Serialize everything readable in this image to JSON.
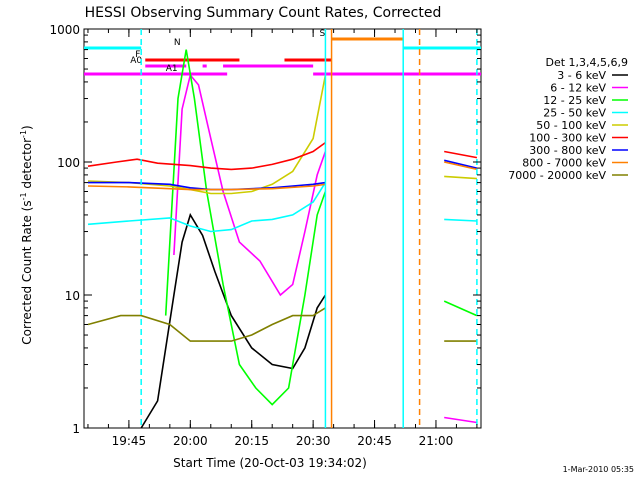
{
  "chart_data": {
    "type": "line",
    "title": "HESSI Observing Summary Count Rates, Corrected",
    "xlabel": "Start Time (20-Oct-03 19:34:02)",
    "ylabel_main": "Corrected Count Rate (s",
    "ylabel_sup1": "-1",
    "ylabel_mid": " detector",
    "ylabel_sup2": "-1",
    "ylabel_end": ")",
    "footer": "1-Mar-2010 05:35",
    "y_scale": "log",
    "ylim": [
      1,
      1000
    ],
    "xlim": [
      "19:34:02",
      "21:11:00"
    ],
    "x_tick_labels": [
      "19:45",
      "20:00",
      "20:15",
      "20:30",
      "20:45",
      "21:00"
    ],
    "y_tick_labels": [
      "1",
      "10",
      "100",
      "1000"
    ],
    "legend_header": "Det 1,3,4,5,6,9",
    "series": [
      {
        "name": "3 - 6 keV",
        "color": "#000000",
        "points": [
          [
            "19:48:00",
            1
          ],
          [
            "19:52:00",
            1.6
          ],
          [
            "19:56:00",
            10
          ],
          [
            "19:58:00",
            25
          ],
          [
            "20:00:00",
            40
          ],
          [
            "20:03:00",
            28
          ],
          [
            "20:06:00",
            15
          ],
          [
            "20:10:00",
            7
          ],
          [
            "20:15:00",
            4
          ],
          [
            "20:20:00",
            3
          ],
          [
            "20:25:00",
            2.8
          ],
          [
            "20:28:00",
            4
          ],
          [
            "20:31:00",
            8
          ],
          [
            "20:33:00",
            10
          ]
        ],
        "points_b": []
      },
      {
        "name": "6 - 12 keV",
        "color": "#ff00ff",
        "points": [
          [
            "19:56:00",
            20
          ],
          [
            "19:58:00",
            250
          ],
          [
            "20:00:00",
            450
          ],
          [
            "20:02:00",
            380
          ],
          [
            "20:05:00",
            150
          ],
          [
            "20:08:00",
            60
          ],
          [
            "20:12:00",
            25
          ],
          [
            "20:17:00",
            18
          ],
          [
            "20:22:00",
            10
          ],
          [
            "20:25:00",
            12
          ],
          [
            "20:28:00",
            30
          ],
          [
            "20:31:00",
            80
          ],
          [
            "20:33:00",
            120
          ]
        ],
        "points_b": [
          [
            "21:02:00",
            1.2
          ],
          [
            "21:10:00",
            1.1
          ]
        ]
      },
      {
        "name": "12 - 25 keV",
        "color": "#00ff00",
        "points": [
          [
            "19:54:00",
            7
          ],
          [
            "19:57:00",
            300
          ],
          [
            "19:59:00",
            700
          ],
          [
            "20:01:00",
            300
          ],
          [
            "20:04:00",
            60
          ],
          [
            "20:08:00",
            12
          ],
          [
            "20:12:00",
            3
          ],
          [
            "20:16:00",
            2
          ],
          [
            "20:20:00",
            1.5
          ],
          [
            "20:24:00",
            2
          ],
          [
            "20:28:00",
            10
          ],
          [
            "20:31:00",
            40
          ],
          [
            "20:33:00",
            60
          ]
        ],
        "points_b": [
          [
            "21:02:00",
            9
          ],
          [
            "21:10:00",
            7
          ]
        ]
      },
      {
        "name": "25 - 50 keV",
        "color": "#00ffff",
        "points": [
          [
            "19:35:00",
            34
          ],
          [
            "19:45:00",
            36
          ],
          [
            "19:55:00",
            38
          ],
          [
            "20:00:00",
            33
          ],
          [
            "20:05:00",
            30
          ],
          [
            "20:10:00",
            31
          ],
          [
            "20:15:00",
            36
          ],
          [
            "20:20:00",
            37
          ],
          [
            "20:25:00",
            40
          ],
          [
            "20:30:00",
            50
          ],
          [
            "20:33:00",
            70
          ]
        ],
        "points_b": [
          [
            "21:02:00",
            37
          ],
          [
            "21:10:00",
            36
          ]
        ]
      },
      {
        "name": "50 - 100 keV",
        "color": "#cccc00",
        "points": [
          [
            "19:35:00",
            72
          ],
          [
            "19:45:00",
            70
          ],
          [
            "19:55:00",
            66
          ],
          [
            "20:00:00",
            62
          ],
          [
            "20:05:00",
            58
          ],
          [
            "20:10:00",
            58
          ],
          [
            "20:15:00",
            60
          ],
          [
            "20:20:00",
            68
          ],
          [
            "20:25:00",
            85
          ],
          [
            "20:30:00",
            150
          ],
          [
            "20:33:00",
            450
          ]
        ],
        "points_b": [
          [
            "21:02:00",
            78
          ],
          [
            "21:10:00",
            75
          ]
        ]
      },
      {
        "name": "100 - 300 keV",
        "color": "#ff0000",
        "points": [
          [
            "19:35:00",
            93
          ],
          [
            "19:42:00",
            100
          ],
          [
            "19:47:00",
            105
          ],
          [
            "19:52:00",
            98
          ],
          [
            "20:00:00",
            94
          ],
          [
            "20:05:00",
            90
          ],
          [
            "20:10:00",
            88
          ],
          [
            "20:15:00",
            90
          ],
          [
            "20:20:00",
            96
          ],
          [
            "20:25:00",
            105
          ],
          [
            "20:30:00",
            120
          ],
          [
            "20:33:00",
            140
          ]
        ],
        "points_b": [
          [
            "21:02:00",
            120
          ],
          [
            "21:10:00",
            108
          ]
        ]
      },
      {
        "name": "300 - 800 keV",
        "color": "#0000ff",
        "points": [
          [
            "19:35:00",
            70
          ],
          [
            "19:45:00",
            70
          ],
          [
            "19:55:00",
            68
          ],
          [
            "20:00:00",
            64
          ],
          [
            "20:05:00",
            62
          ],
          [
            "20:10:00",
            62
          ],
          [
            "20:15:00",
            63
          ],
          [
            "20:20:00",
            64
          ],
          [
            "20:25:00",
            66
          ],
          [
            "20:30:00",
            68
          ],
          [
            "20:33:00",
            70
          ]
        ],
        "points_b": [
          [
            "21:02:00",
            103
          ],
          [
            "21:10:00",
            90
          ]
        ]
      },
      {
        "name": "800 - 7000 keV",
        "color": "#ff8000",
        "points": [
          [
            "19:35:00",
            66
          ],
          [
            "19:45:00",
            65
          ],
          [
            "19:55:00",
            63
          ],
          [
            "20:00:00",
            62
          ],
          [
            "20:10:00",
            62
          ],
          [
            "20:20:00",
            63
          ],
          [
            "20:30:00",
            66
          ],
          [
            "20:33:00",
            68
          ]
        ],
        "points_b": [
          [
            "21:02:00",
            100
          ],
          [
            "21:10:00",
            88
          ]
        ]
      },
      {
        "name": "7000 - 20000 keV",
        "color": "#808000",
        "points": [
          [
            "19:35:00",
            6
          ],
          [
            "19:43:00",
            7
          ],
          [
            "19:48:00",
            7
          ],
          [
            "19:55:00",
            6
          ],
          [
            "20:00:00",
            4.5
          ],
          [
            "20:10:00",
            4.5
          ],
          [
            "20:15:00",
            5
          ],
          [
            "20:20:00",
            6
          ],
          [
            "20:25:00",
            7
          ],
          [
            "20:30:00",
            7
          ],
          [
            "20:33:00",
            8
          ]
        ],
        "points_b": [
          [
            "21:02:00",
            4.5
          ],
          [
            "21:10:00",
            4.5
          ]
        ]
      }
    ],
    "flag_bars": [
      {
        "label": "N",
        "color": "#00ffff",
        "segments": [
          [
            "19:34:02",
            "19:48:00"
          ],
          [
            "20:52:00",
            "21:11:00"
          ]
        ]
      },
      {
        "label": "S",
        "color": "#ff8000",
        "segments": [
          [
            "20:34:30",
            "20:52:00"
          ]
        ]
      },
      {
        "label": "F",
        "color": "#ff0000",
        "segments": [
          [
            "19:49:00",
            "20:12:00"
          ],
          [
            "20:23:00",
            "20:34:30"
          ]
        ]
      },
      {
        "label": "A0",
        "color": "#ff00ff",
        "segments": [
          [
            "19:49:00",
            "19:59:00"
          ],
          [
            "20:03:00",
            "20:04:00"
          ],
          [
            "20:08:00",
            "20:30:00"
          ]
        ]
      },
      {
        "label": "A1",
        "color": "#ff00ff",
        "segments": [
          [
            "19:34:02",
            "20:09:00"
          ],
          [
            "20:30:00",
            "21:11:00"
          ]
        ]
      }
    ],
    "vlines": [
      {
        "time": "19:48:00",
        "color": "#00ffff",
        "dashed": true
      },
      {
        "time": "20:33:00",
        "color": "#00ffff",
        "dashed": false
      },
      {
        "time": "20:34:30",
        "color": "#ff8000",
        "dashed": false
      },
      {
        "time": "20:52:00",
        "color": "#00ffff",
        "dashed": false
      },
      {
        "time": "20:56:00",
        "color": "#ff8000",
        "dashed": true
      },
      {
        "time": "21:10:00",
        "color": "#00ffff",
        "dashed": true
      }
    ]
  }
}
